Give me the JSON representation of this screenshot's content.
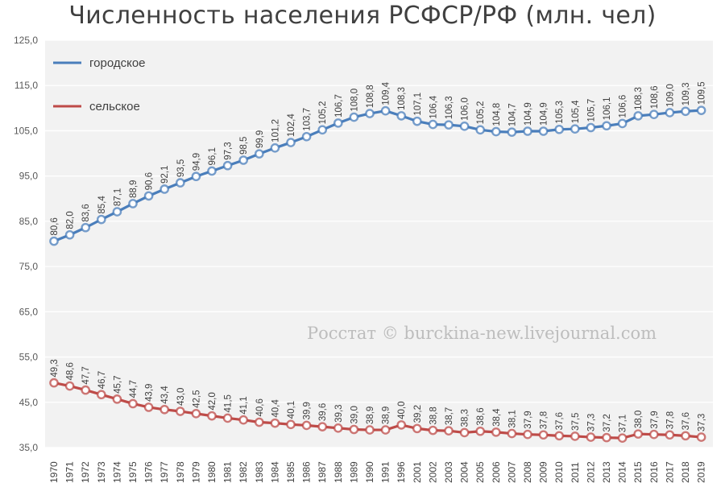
{
  "chart_data": {
    "type": "line",
    "title": "Численность населения РСФСР/РФ (млн. чел)",
    "xlabel": "",
    "ylabel": "",
    "ylim": [
      35,
      125
    ],
    "yticks": [
      "35,0",
      "45,0",
      "55,0",
      "65,0",
      "75,0",
      "85,0",
      "95,0",
      "105,0",
      "115,0",
      "125,0"
    ],
    "grid": "horizontal",
    "legend_position": "top-left",
    "categories": [
      "1970",
      "1971",
      "1972",
      "1973",
      "1974",
      "1975",
      "1976",
      "1977",
      "1978",
      "1979",
      "1980",
      "1981",
      "1982",
      "1983",
      "1984",
      "1985",
      "1986",
      "1987",
      "1988",
      "1989",
      "1990",
      "1991",
      "1996",
      "2001",
      "2002",
      "2003",
      "2004",
      "2005",
      "2006",
      "2007",
      "2008",
      "2009",
      "2010",
      "2011",
      "2012",
      "2013",
      "2014",
      "2015",
      "2016",
      "2017",
      "2018",
      "2019"
    ],
    "series": [
      {
        "name": "городское",
        "color": "#4a7ebb",
        "values": [
          80.6,
          82.0,
          83.6,
          85.4,
          87.1,
          88.9,
          90.6,
          92.1,
          93.5,
          94.9,
          96.1,
          97.3,
          98.5,
          99.9,
          101.2,
          102.4,
          103.7,
          105.2,
          106.7,
          108.0,
          108.8,
          109.4,
          108.3,
          107.1,
          106.4,
          106.3,
          106.0,
          105.2,
          104.8,
          104.7,
          104.9,
          104.9,
          105.3,
          105.4,
          105.7,
          106.1,
          106.6,
          108.3,
          108.6,
          109.0,
          109.3,
          109.5
        ],
        "labels": [
          "80,6",
          "82,0",
          "83,6",
          "85,4",
          "87,1",
          "88,9",
          "90,6",
          "92,1",
          "93,5",
          "94,9",
          "96,1",
          "97,3",
          "98,5",
          "99,9",
          "101,2",
          "102,4",
          "103,7",
          "105,2",
          "106,7",
          "108,0",
          "108,8",
          "109,4",
          "108,3",
          "107,1",
          "106,4",
          "106,3",
          "106,0",
          "105,2",
          "104,8",
          "104,7",
          "104,9",
          "104,9",
          "105,3",
          "105,4",
          "105,7",
          "106,1",
          "106,6",
          "108,3",
          "108,6",
          "109,0",
          "109,3",
          "109,5"
        ]
      },
      {
        "name": "сельское",
        "color": "#be4b48",
        "values": [
          49.3,
          48.6,
          47.7,
          46.7,
          45.7,
          44.7,
          43.9,
          43.4,
          43.0,
          42.5,
          42.0,
          41.5,
          41.1,
          40.6,
          40.4,
          40.1,
          39.9,
          39.6,
          39.3,
          39.0,
          38.9,
          38.9,
          40.0,
          39.2,
          38.8,
          38.7,
          38.3,
          38.6,
          38.4,
          38.1,
          37.9,
          37.8,
          37.6,
          37.5,
          37.3,
          37.2,
          37.1,
          38.0,
          37.9,
          37.8,
          37.6,
          37.3
        ],
        "labels": [
          "49,3",
          "48,6",
          "47,7",
          "46,7",
          "45,7",
          "44,7",
          "43,9",
          "43,4",
          "43,0",
          "42,5",
          "42,0",
          "41,5",
          "41,1",
          "40,6",
          "40,4",
          "40,1",
          "39,9",
          "39,6",
          "39,3",
          "39,0",
          "38,9",
          "38,9",
          "40,0",
          "39,2",
          "38,8",
          "38,7",
          "38,3",
          "38,6",
          "38,4",
          "38,1",
          "37,9",
          "37,8",
          "37,6",
          "37,5",
          "37,3",
          "37,2",
          "37,1",
          "38,0",
          "37,9",
          "37,8",
          "37,6",
          "37,3"
        ]
      }
    ],
    "watermark": "Росстат © burckina-new.livejournal.com"
  }
}
